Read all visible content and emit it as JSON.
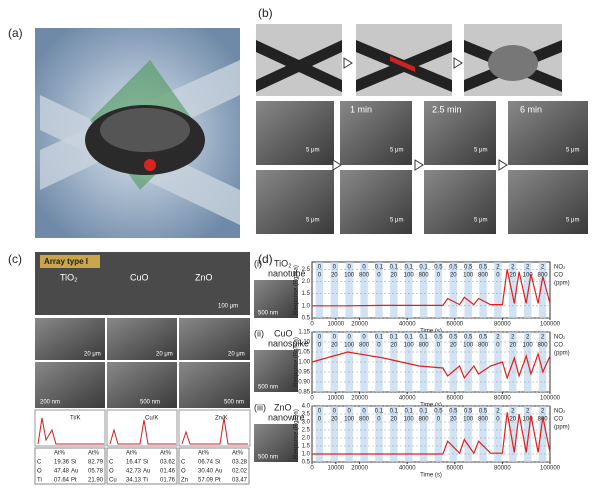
{
  "panel_a": {
    "label": "(a)"
  },
  "panel_b": {
    "label": "(b)",
    "times": [
      "1 min",
      "2.5 min",
      "6 min"
    ],
    "scale_bars": [
      "5 μm",
      "5 μm",
      "5 μm",
      "5 μm",
      "5 μm",
      "5 μm",
      "5 μm",
      "5 μm"
    ]
  },
  "panel_c": {
    "label": "(c)",
    "title": "Array type I",
    "materials": [
      "TiO₂",
      "CuO",
      "ZnO"
    ],
    "scale_top": "100 μm",
    "scale_mid": [
      "20 μm",
      "20 μm",
      "20 μm"
    ],
    "scale_low": [
      "200 nm",
      "500 nm",
      "500 nm"
    ],
    "edx_inset": [
      "Ti/K",
      "Cu/K",
      "Zn/K"
    ],
    "tables": [
      [
        [
          "",
          "At%",
          "",
          "At%"
        ],
        [
          "C",
          "19.36",
          "Si",
          "82.79"
        ],
        [
          "O",
          "47.48",
          "Au",
          "05.78"
        ],
        [
          "Ti",
          "07.64",
          "Pt",
          "21.90"
        ]
      ],
      [
        [
          "",
          "At%",
          "",
          "At%"
        ],
        [
          "C",
          "16.47",
          "Si",
          "03.62"
        ],
        [
          "O",
          "42.73",
          "Au",
          "01.46"
        ],
        [
          "Cu",
          "34.13",
          "Ti",
          "01.76"
        ]
      ],
      [
        [
          "",
          "At%",
          "",
          "At%"
        ],
        [
          "C",
          "06.74",
          "Si",
          "03.28"
        ],
        [
          "O",
          "30.40",
          "Au",
          "02.02"
        ],
        [
          "Zn",
          "57.09",
          "Pt",
          "03.47"
        ]
      ]
    ]
  },
  "panel_d": {
    "label": "(d)",
    "charts": [
      {
        "type": "line",
        "tag": "(i)",
        "sample": [
          "TiO₂",
          "nanotube"
        ],
        "scale_bar": "500 nm",
        "y_label": "Response (Rg/Ra)",
        "x_label": "Time (s)",
        "gas_labels": [
          "NO₂",
          "CO",
          "(ppm)"
        ],
        "no2_levels": [
          0,
          0,
          0,
          0,
          0.1,
          0.1,
          0.1,
          0.1,
          0.5,
          0.5,
          0.5,
          0.5,
          2,
          2,
          2,
          2
        ],
        "co_levels": [
          0,
          20,
          100,
          800,
          0,
          20,
          100,
          800,
          0,
          20,
          100,
          800,
          0,
          20,
          100,
          800
        ],
        "x": [
          0,
          15000,
          30000,
          45000,
          55000,
          57000,
          62000,
          64000,
          68000,
          70000,
          75000,
          80000,
          82000,
          85000,
          87000,
          90000,
          92000,
          95000,
          97000,
          100000
        ],
        "series": [
          {
            "color": "#e0201b",
            "values": [
              1.0,
              1.0,
              1.02,
              1.02,
              1.02,
              1.3,
              1.05,
              1.35,
              1.05,
              1.3,
              1.05,
              1.05,
              2.5,
              1.1,
              2.4,
              1.1,
              2.3,
              1.1,
              2.2,
              1.1
            ]
          }
        ],
        "xlim": [
          0,
          100000
        ],
        "xticks": [
          0,
          10000,
          20000,
          40000,
          60000,
          80000,
          100000
        ],
        "ylim": [
          0.5,
          2.8
        ],
        "yticks": [
          {
            "value": 0.5,
            "label": "0.5"
          },
          {
            "value": 1,
            "label": "1.0"
          },
          {
            "value": 1.5,
            "label": "1.5"
          },
          {
            "value": 2,
            "label": "2.0"
          },
          {
            "value": 2.5,
            "label": "2.5"
          }
        ]
      },
      {
        "type": "line",
        "tag": "(ii)",
        "sample": [
          "CuO",
          "nanospike"
        ],
        "scale_bar": "500 nm",
        "y_label": "Response (Rg/Ra)",
        "x_label": "Time (s)",
        "gas_labels": [
          "NO₂",
          "CO",
          "(ppm)"
        ],
        "no2_levels": [
          0,
          0,
          0,
          0,
          0.1,
          0.1,
          0.1,
          0.1,
          0.5,
          0.5,
          0.5,
          0.5,
          2,
          2,
          2,
          2
        ],
        "co_levels": [
          0,
          20,
          100,
          800,
          0,
          20,
          100,
          800,
          0,
          20,
          100,
          800,
          0,
          20,
          100,
          800
        ],
        "x": [
          0,
          15000,
          30000,
          45000,
          55000,
          57000,
          62000,
          64000,
          68000,
          70000,
          75000,
          80000,
          82000,
          85000,
          87000,
          90000,
          92000,
          95000,
          97000,
          100000
        ],
        "series": [
          {
            "color": "#e0201b",
            "values": [
              1.0,
              1.05,
              1.02,
              0.98,
              0.97,
              0.93,
              0.98,
              0.92,
              0.98,
              0.94,
              0.98,
              1.0,
              0.92,
              1.02,
              0.93,
              1.03,
              0.94,
              1.04,
              0.95,
              1.03
            ]
          }
        ],
        "xlim": [
          0,
          100000
        ],
        "xticks": [
          0,
          10000,
          20000,
          40000,
          60000,
          80000,
          100000
        ],
        "ylim": [
          0.85,
          1.15
        ],
        "yticks": [
          {
            "value": 0.85,
            "label": "0.85"
          },
          {
            "value": 0.9,
            "label": "0.90"
          },
          {
            "value": 0.95,
            "label": "0.95"
          },
          {
            "value": 1,
            "label": "1.00"
          },
          {
            "value": 1.05,
            "label": "1.05"
          },
          {
            "value": 1.1,
            "label": "1.10"
          },
          {
            "value": 1.15,
            "label": "1.15"
          }
        ]
      },
      {
        "type": "line",
        "tag": "(iii)",
        "sample": [
          "ZnO",
          "nanowire"
        ],
        "scale_bar": "500 nm",
        "y_label": "Response (Rg/Ra)",
        "x_label": "Time (s)",
        "gas_labels": [
          "NO₂",
          "CO",
          "(ppm)"
        ],
        "no2_levels": [
          0,
          0,
          0,
          0,
          0.1,
          0.1,
          0.1,
          0.1,
          0.5,
          0.5,
          0.5,
          0.5,
          2,
          2,
          2,
          2
        ],
        "co_levels": [
          0,
          20,
          100,
          800,
          0,
          20,
          100,
          800,
          0,
          20,
          100,
          800,
          0,
          20,
          100,
          800
        ],
        "x": [
          0,
          15000,
          30000,
          45000,
          55000,
          57000,
          62000,
          64000,
          68000,
          70000,
          75000,
          80000,
          82000,
          85000,
          87000,
          90000,
          92000,
          95000,
          97000,
          100000
        ],
        "series": [
          {
            "color": "#e0201b",
            "values": [
              1.0,
              1.0,
              1.0,
              1.0,
              1.0,
              1.8,
              1.05,
              1.9,
              1.05,
              1.8,
              1.05,
              1.05,
              3.6,
              1.1,
              3.5,
              1.1,
              3.4,
              1.1,
              3.3,
              1.1
            ]
          }
        ],
        "xlim": [
          0,
          100000
        ],
        "xticks": [
          0,
          10000,
          20000,
          40000,
          60000,
          80000,
          100000
        ],
        "ylim": [
          0.5,
          4
        ],
        "yticks": [
          {
            "value": 0.5,
            "label": "0.5"
          },
          {
            "value": 1,
            "label": "1.0"
          },
          {
            "value": 1.5,
            "label": "1.5"
          },
          {
            "value": 2,
            "label": "2.0"
          },
          {
            "value": 2.5,
            "label": "2.5"
          },
          {
            "value": 3,
            "label": "3.0"
          },
          {
            "value": 3.5,
            "label": "3.5"
          },
          {
            "value": 4,
            "label": "4.0"
          }
        ]
      }
    ]
  }
}
